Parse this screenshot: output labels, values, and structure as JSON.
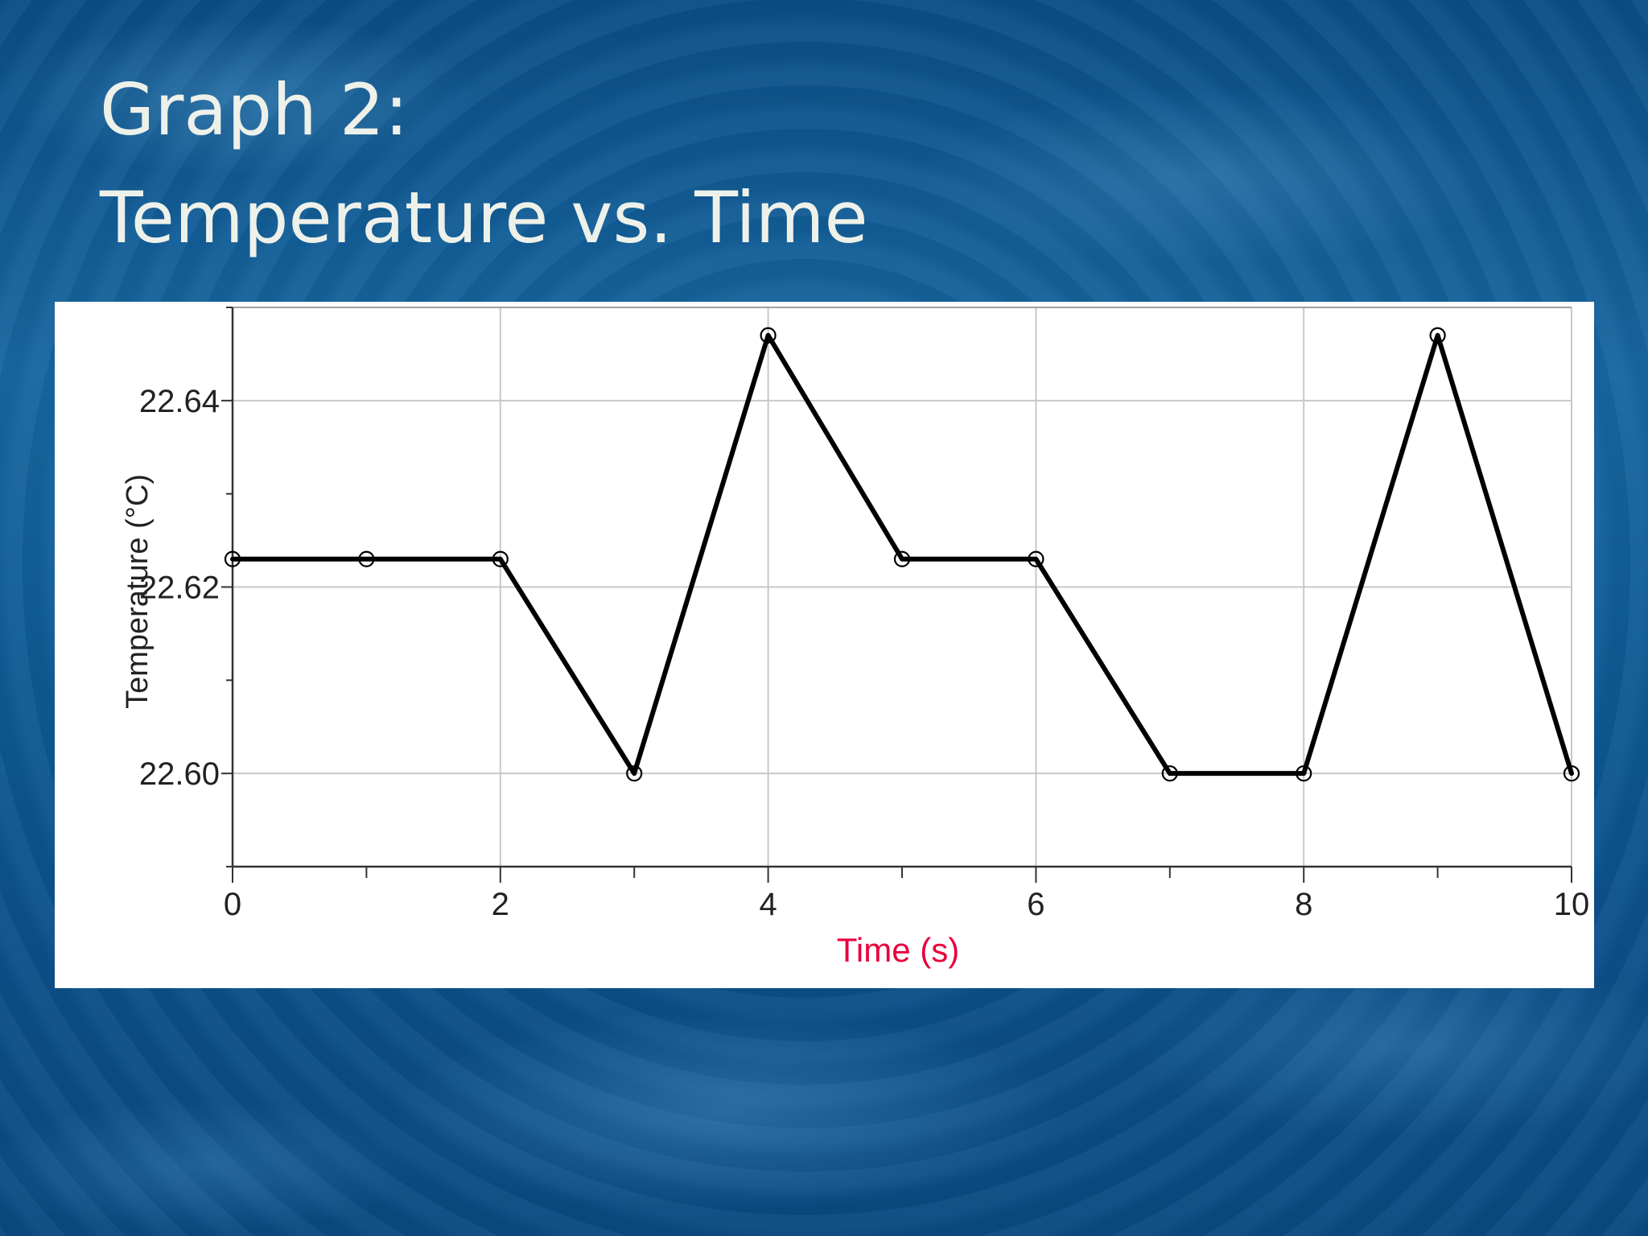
{
  "slide": {
    "title_line1": "Graph 2:",
    "title_line2": "Temperature vs. Time"
  },
  "colors": {
    "background": "#0d5a94",
    "title_text": "#eef1ea",
    "panel": "#ffffff",
    "line": "#000000",
    "grid": "#c8c8c8",
    "xlabel": "#e8003c"
  },
  "chart_data": {
    "type": "line",
    "title": "",
    "xlabel": "Time (s)",
    "ylabel": "Temperature (°C)",
    "xlim": [
      0,
      10
    ],
    "ylim": [
      22.59,
      22.65
    ],
    "x_ticks": [
      "0",
      "2",
      "4",
      "6",
      "8",
      "10"
    ],
    "x_tick_values": [
      0,
      2,
      4,
      6,
      8,
      10
    ],
    "y_ticks": [
      "22.60",
      "22.62",
      "22.64"
    ],
    "y_tick_values": [
      22.6,
      22.62,
      22.64
    ],
    "grid": true,
    "series": [
      {
        "x": [
          0,
          1,
          2,
          3,
          4,
          5,
          6,
          7,
          8,
          9,
          10
        ],
        "y": [
          22.623,
          22.623,
          22.623,
          22.6,
          22.647,
          22.623,
          22.623,
          22.6,
          22.6,
          22.647,
          22.6
        ]
      }
    ]
  }
}
